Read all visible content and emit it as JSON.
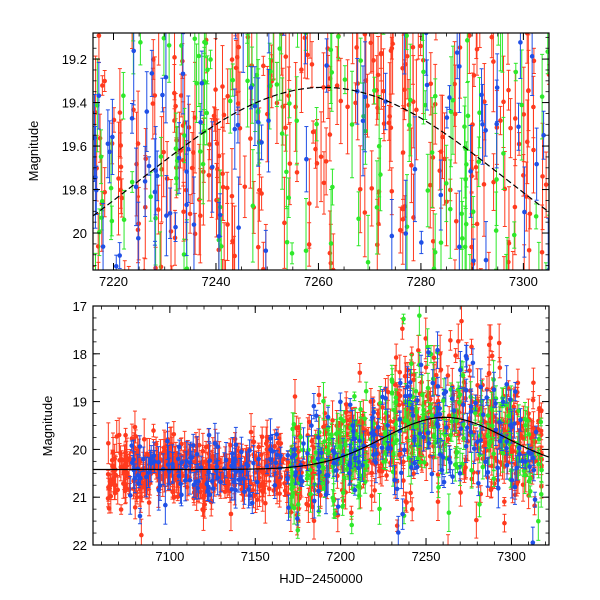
{
  "chart_data": [
    {
      "type": "scatter",
      "panel": "top",
      "title": "",
      "xlabel": "",
      "ylabel": "Magnitude",
      "xlim": [
        7216,
        7305
      ],
      "ylim": [
        20.17,
        19.08
      ],
      "y_inverted": true,
      "x_ticks": [
        7220,
        7240,
        7260,
        7280,
        7300
      ],
      "x_tick_labels": [
        "7220",
        "7240",
        "7260",
        "7280",
        "7300"
      ],
      "y_ticks": [
        19.2,
        19.4,
        19.6,
        19.8,
        20.0
      ],
      "y_tick_labels": [
        "19.2",
        "19.4",
        "19.6",
        "19.8",
        "20"
      ],
      "x_minor_step": 5,
      "y_minor_step": 0.05,
      "model_curve": {
        "style": "dashed-solid",
        "peak_x": 7261,
        "peak_y": 19.33,
        "baseline_y": 20.42,
        "width": 36
      },
      "series": [
        {
          "name": "red",
          "color": "#ff3a1e",
          "x_range": [
            7216,
            7305
          ],
          "n_points": 360
        },
        {
          "name": "green",
          "color": "#2ee82a",
          "x_range": [
            7216,
            7305
          ],
          "n_points": 170
        },
        {
          "name": "blue",
          "color": "#1f4fe6",
          "x_range": [
            7216,
            7305
          ],
          "n_points": 110
        }
      ]
    },
    {
      "type": "scatter",
      "panel": "bottom",
      "title": "",
      "xlabel": "HJD−2450000",
      "ylabel": "Magnitude",
      "xlim": [
        7055,
        7322
      ],
      "ylim": [
        22.0,
        17.0
      ],
      "y_inverted": true,
      "x_ticks": [
        7100,
        7150,
        7200,
        7250,
        7300
      ],
      "x_tick_labels": [
        "7100",
        "7150",
        "7200",
        "7250",
        "7300"
      ],
      "y_ticks": [
        17,
        18,
        19,
        20,
        21,
        22
      ],
      "y_tick_labels": [
        "17",
        "18",
        "19",
        "20",
        "21",
        "22"
      ],
      "x_minor_step": 10,
      "y_minor_step": 0.25,
      "model_curve": {
        "style": "solid",
        "peak_x": 7261,
        "peak_y": 19.33,
        "baseline_y": 20.42,
        "width": 36
      },
      "series": [
        {
          "name": "red",
          "color": "#ff3a1e",
          "x_range": [
            7063,
            7318
          ],
          "n_points": 900
        },
        {
          "name": "green",
          "color": "#2ee82a",
          "x_range": [
            7170,
            7318
          ],
          "n_points": 260
        },
        {
          "name": "blue",
          "color": "#1f4fe6",
          "x_range": [
            7075,
            7315
          ],
          "n_points": 280
        }
      ]
    }
  ]
}
